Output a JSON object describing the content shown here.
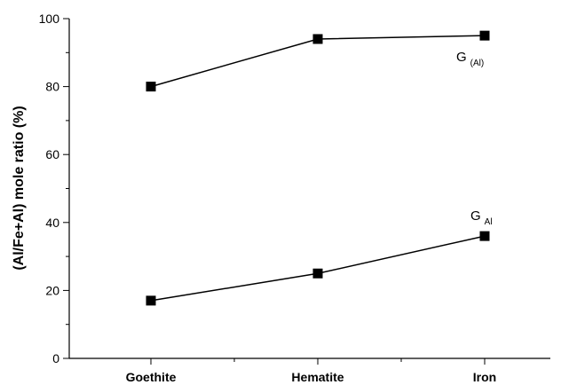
{
  "chart_data": {
    "type": "line",
    "categories": [
      "Goethite",
      "Hematite",
      "Iron"
    ],
    "xlabel": "",
    "ylabel": "(Al/Fe+Al) mole ratio (%)",
    "ylim": [
      0,
      100
    ],
    "yticks": [
      0,
      20,
      40,
      60,
      80,
      100
    ],
    "grid": false,
    "series": [
      {
        "name": "G(Al)",
        "label_main": "G",
        "label_sub": "(Al)",
        "values": [
          80,
          94,
          95
        ]
      },
      {
        "name": "GAl",
        "label_main": "G",
        "label_sub": "Al",
        "values": [
          17,
          25,
          36
        ]
      }
    ],
    "colors": {
      "line": "#000000",
      "marker": "#000000"
    }
  }
}
